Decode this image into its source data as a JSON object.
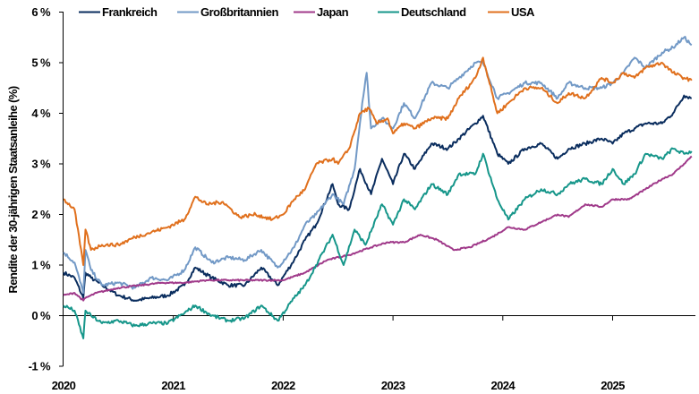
{
  "chart_data": {
    "type": "line",
    "title": "",
    "xlabel": "",
    "ylabel": "Rendite der 30-jährigen Staatsanleihe (%)",
    "ylim": [
      -1,
      6
    ],
    "xlim": [
      2020.0,
      2025.75
    ],
    "yticks": [
      -1,
      0,
      1,
      2,
      3,
      4,
      5,
      6
    ],
    "ytick_labels": [
      "-1 %",
      "0 %",
      "1 %",
      "2 %",
      "3 %",
      "4 %",
      "5 %",
      "6 %"
    ],
    "xticks": [
      2020,
      2021,
      2022,
      2023,
      2024,
      2025
    ],
    "xtick_labels": [
      "2020",
      "2021",
      "2022",
      "2023",
      "2024",
      "2025"
    ],
    "grid": false,
    "legend_position": "top",
    "series": [
      {
        "name": "Frankreich",
        "color": "#0a2d5e",
        "x": [
          2020.0,
          2020.1,
          2020.18,
          2020.2,
          2020.25,
          2020.35,
          2020.5,
          2020.65,
          2020.8,
          2020.95,
          2021.1,
          2021.2,
          2021.35,
          2021.5,
          2021.65,
          2021.8,
          2021.95,
          2022.1,
          2022.2,
          2022.3,
          2022.45,
          2022.5,
          2022.6,
          2022.7,
          2022.8,
          2022.9,
          2023.0,
          2023.1,
          2023.2,
          2023.35,
          2023.5,
          2023.6,
          2023.75,
          2023.82,
          2023.95,
          2024.05,
          2024.2,
          2024.35,
          2024.5,
          2024.6,
          2024.75,
          2024.9,
          2025.0,
          2025.1,
          2025.2,
          2025.3,
          2025.45,
          2025.55,
          2025.65,
          2025.72
        ],
        "values": [
          0.85,
          0.75,
          0.35,
          0.85,
          0.75,
          0.6,
          0.4,
          0.3,
          0.35,
          0.4,
          0.6,
          0.95,
          0.75,
          0.6,
          0.6,
          0.95,
          0.6,
          1.1,
          1.5,
          1.8,
          2.6,
          2.2,
          2.1,
          2.9,
          2.4,
          3.1,
          2.6,
          3.2,
          2.9,
          3.4,
          3.3,
          3.5,
          3.8,
          3.95,
          3.2,
          3.0,
          3.3,
          3.4,
          3.1,
          3.3,
          3.4,
          3.5,
          3.4,
          3.6,
          3.7,
          3.8,
          3.8,
          4.0,
          4.35,
          4.3
        ]
      },
      {
        "name": "Großbritannien",
        "color": "#7299c6",
        "x": [
          2020.0,
          2020.1,
          2020.18,
          2020.2,
          2020.25,
          2020.35,
          2020.5,
          2020.65,
          2020.8,
          2020.95,
          2021.1,
          2021.2,
          2021.35,
          2021.5,
          2021.65,
          2021.8,
          2021.95,
          2022.1,
          2022.2,
          2022.3,
          2022.45,
          2022.55,
          2022.65,
          2022.72,
          2022.76,
          2022.8,
          2022.9,
          2023.0,
          2023.1,
          2023.2,
          2023.35,
          2023.5,
          2023.6,
          2023.75,
          2023.82,
          2023.95,
          2024.05,
          2024.2,
          2024.35,
          2024.5,
          2024.6,
          2024.75,
          2024.9,
          2025.0,
          2025.1,
          2025.2,
          2025.3,
          2025.45,
          2025.55,
          2025.65,
          2025.72
        ],
        "values": [
          1.25,
          1.05,
          0.45,
          1.3,
          0.9,
          0.6,
          0.65,
          0.55,
          0.75,
          0.7,
          0.9,
          1.35,
          1.05,
          1.15,
          1.1,
          1.3,
          0.95,
          1.35,
          1.8,
          2.0,
          2.4,
          2.2,
          2.9,
          4.2,
          4.8,
          3.7,
          3.9,
          3.7,
          4.2,
          3.9,
          4.6,
          4.5,
          4.7,
          5.0,
          5.0,
          4.3,
          4.4,
          4.6,
          4.6,
          4.3,
          4.6,
          4.5,
          4.5,
          4.6,
          4.8,
          5.1,
          4.9,
          5.2,
          5.3,
          5.5,
          5.35
        ]
      },
      {
        "name": "Japan",
        "color": "#a03a8a",
        "x": [
          2020.0,
          2020.1,
          2020.18,
          2020.2,
          2020.3,
          2020.5,
          2020.7,
          2020.9,
          2021.1,
          2021.3,
          2021.5,
          2021.7,
          2021.9,
          2022.0,
          2022.2,
          2022.4,
          2022.6,
          2022.8,
          2022.95,
          2023.1,
          2023.25,
          2023.4,
          2023.55,
          2023.7,
          2023.9,
          2024.05,
          2024.2,
          2024.35,
          2024.5,
          2024.6,
          2024.75,
          2024.9,
          2025.0,
          2025.15,
          2025.3,
          2025.45,
          2025.55,
          2025.65,
          2025.72
        ],
        "values": [
          0.4,
          0.45,
          0.3,
          0.35,
          0.45,
          0.55,
          0.6,
          0.65,
          0.65,
          0.7,
          0.7,
          0.7,
          0.7,
          0.7,
          0.85,
          1.1,
          1.2,
          1.35,
          1.45,
          1.45,
          1.6,
          1.5,
          1.3,
          1.35,
          1.55,
          1.75,
          1.7,
          1.85,
          2.0,
          1.95,
          2.2,
          2.15,
          2.3,
          2.3,
          2.5,
          2.7,
          2.8,
          3.0,
          3.15
        ]
      },
      {
        "name": "Deutschland",
        "color": "#16968a",
        "x": [
          2020.0,
          2020.1,
          2020.18,
          2020.2,
          2020.25,
          2020.35,
          2020.5,
          2020.65,
          2020.8,
          2020.95,
          2021.1,
          2021.2,
          2021.35,
          2021.5,
          2021.65,
          2021.8,
          2021.95,
          2022.1,
          2022.2,
          2022.3,
          2022.45,
          2022.55,
          2022.65,
          2022.75,
          2022.9,
          2023.0,
          2023.1,
          2023.2,
          2023.35,
          2023.5,
          2023.6,
          2023.75,
          2023.82,
          2023.95,
          2024.05,
          2024.2,
          2024.35,
          2024.5,
          2024.6,
          2024.75,
          2024.9,
          2025.0,
          2025.1,
          2025.2,
          2025.3,
          2025.45,
          2025.55,
          2025.65,
          2025.72
        ],
        "values": [
          0.2,
          0.1,
          -0.45,
          0.1,
          0.0,
          -0.15,
          -0.1,
          -0.2,
          -0.15,
          -0.15,
          0.05,
          0.2,
          0.0,
          -0.1,
          -0.05,
          0.2,
          -0.1,
          0.35,
          0.6,
          1.0,
          1.6,
          1.0,
          1.7,
          1.4,
          2.2,
          1.8,
          2.3,
          2.1,
          2.6,
          2.4,
          2.8,
          2.8,
          3.2,
          2.3,
          1.9,
          2.3,
          2.5,
          2.4,
          2.6,
          2.7,
          2.6,
          2.9,
          2.6,
          2.8,
          3.2,
          3.1,
          3.3,
          3.2,
          3.25
        ]
      },
      {
        "name": "USA",
        "color": "#e0701d",
        "x": [
          2020.0,
          2020.1,
          2020.18,
          2020.2,
          2020.25,
          2020.35,
          2020.5,
          2020.65,
          2020.8,
          2020.95,
          2021.1,
          2021.2,
          2021.3,
          2021.45,
          2021.6,
          2021.75,
          2021.9,
          2022.0,
          2022.1,
          2022.2,
          2022.3,
          2022.45,
          2022.5,
          2022.6,
          2022.7,
          2022.78,
          2022.85,
          2022.95,
          2023.0,
          2023.1,
          2023.2,
          2023.35,
          2023.5,
          2023.6,
          2023.75,
          2023.82,
          2023.95,
          2024.05,
          2024.2,
          2024.35,
          2024.5,
          2024.6,
          2024.75,
          2024.9,
          2025.0,
          2025.1,
          2025.2,
          2025.3,
          2025.45,
          2025.55,
          2025.65,
          2025.72
        ],
        "values": [
          2.3,
          2.1,
          1.0,
          1.7,
          1.3,
          1.4,
          1.4,
          1.55,
          1.65,
          1.75,
          1.9,
          2.35,
          2.2,
          2.25,
          1.95,
          2.0,
          1.9,
          2.0,
          2.3,
          2.5,
          3.0,
          3.1,
          3.0,
          3.3,
          4.0,
          4.1,
          3.8,
          3.9,
          3.6,
          3.8,
          3.7,
          3.9,
          3.9,
          4.3,
          4.7,
          5.1,
          4.0,
          4.2,
          4.5,
          4.5,
          4.2,
          4.4,
          4.3,
          4.7,
          4.6,
          4.8,
          4.7,
          4.9,
          5.0,
          4.8,
          4.7,
          4.65
        ]
      }
    ]
  },
  "legend": [
    {
      "label": "Frankreich"
    },
    {
      "label": "Großbritannien"
    },
    {
      "label": "Japan"
    },
    {
      "label": "Deutschland"
    },
    {
      "label": "USA"
    }
  ]
}
